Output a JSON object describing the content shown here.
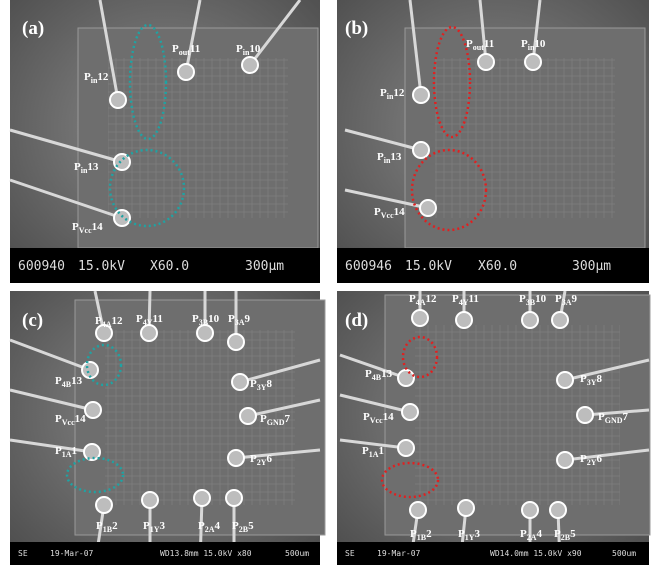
{
  "panels": [
    {
      "letter": "(a)",
      "labels": [
        [
          "P",
          "in",
          "12"
        ],
        [
          "P",
          "out",
          "11"
        ],
        [
          "P",
          "in",
          "10"
        ],
        [
          "P",
          "in",
          "13"
        ],
        [
          "P",
          "Vcc",
          "14"
        ]
      ],
      "footer": [
        "600940",
        "15.0kV",
        "X60.0",
        "300µm"
      ]
    },
    {
      "letter": "(b)",
      "labels": [
        [
          "P",
          "out",
          "11"
        ],
        [
          "P",
          "in",
          "10"
        ],
        [
          "P",
          "in",
          "12"
        ],
        [
          "P",
          "in",
          "13"
        ],
        [
          "P",
          "Vcc",
          "14"
        ]
      ],
      "footer": [
        "600946",
        "15.0kV",
        "X60.0",
        "300µm"
      ]
    },
    {
      "letter": "(c)",
      "labels": [
        [
          "P",
          "4A",
          "12"
        ],
        [
          "P",
          "4Y",
          "11"
        ],
        [
          "P",
          "3B",
          "10"
        ],
        [
          "P",
          "3A",
          "9"
        ],
        [
          "P",
          "4B",
          "13"
        ],
        [
          "P",
          "3Y",
          "8"
        ],
        [
          "P",
          "Vcc",
          "14"
        ],
        [
          "P",
          "GND",
          "7"
        ],
        [
          "P",
          "1A",
          "1"
        ],
        [
          "P",
          "2Y",
          "6"
        ],
        [
          "P",
          "1B",
          "2"
        ],
        [
          "P",
          "1Y",
          "3"
        ],
        [
          "P",
          "2A",
          "4"
        ],
        [
          "P",
          "2B",
          "5"
        ]
      ],
      "footer": [
        "SE",
        "19-Mar-07",
        "WD13.8mm 15.0kV x80",
        "500um"
      ]
    },
    {
      "letter": "(d)",
      "labels": [
        [
          "P",
          "4A",
          "12"
        ],
        [
          "P",
          "4Y",
          "11"
        ],
        [
          "P",
          "3B",
          "10"
        ],
        [
          "P",
          "3A",
          "9"
        ],
        [
          "P",
          "4B",
          "13"
        ],
        [
          "P",
          "3Y",
          "8"
        ],
        [
          "P",
          "Vcc",
          "14"
        ],
        [
          "P",
          "GND",
          "7"
        ],
        [
          "P",
          "1A",
          "1"
        ],
        [
          "P",
          "2Y",
          "6"
        ],
        [
          "P",
          "1B",
          "2"
        ],
        [
          "P",
          "1Y",
          "3"
        ],
        [
          "P",
          "2A",
          "4"
        ],
        [
          "P",
          "2B",
          "5"
        ]
      ],
      "footer": [
        "SE",
        "19-Mar-07",
        "WD14.0mm 15.0kV x90",
        "500um"
      ]
    }
  ]
}
